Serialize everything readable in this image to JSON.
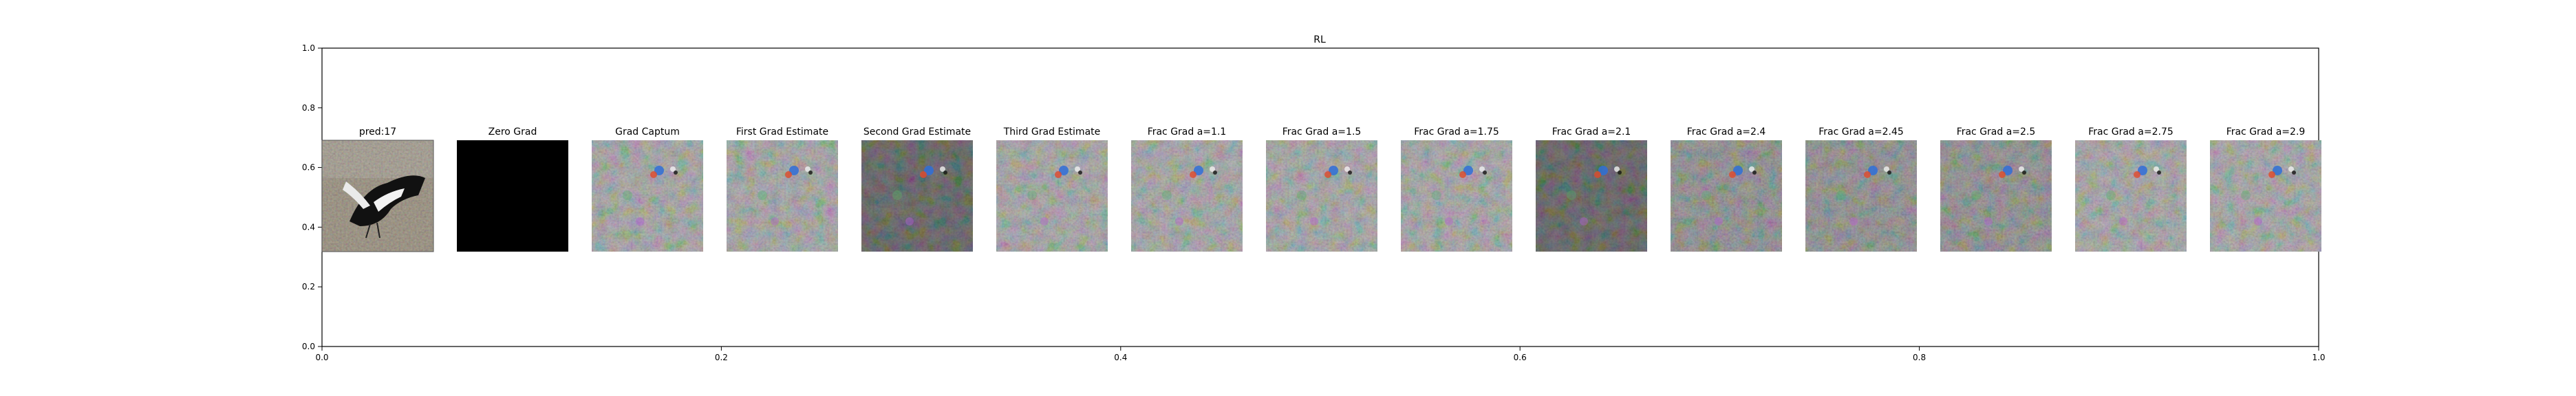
{
  "figure": {
    "title": "RL",
    "x_ticks": [
      "0.0",
      "0.2",
      "0.4",
      "0.6",
      "0.8",
      "1.0"
    ],
    "y_ticks": [
      "0.0",
      "0.2",
      "0.4",
      "0.6",
      "0.8",
      "1.0"
    ]
  },
  "panels": [
    {
      "title": "pred:17",
      "style": "photo"
    },
    {
      "title": "Zero Grad",
      "style": "black"
    },
    {
      "title": "Grad Captum",
      "style": "grad-light"
    },
    {
      "title": "First Grad Estimate",
      "style": "grad-light"
    },
    {
      "title": "Second Grad Estimate",
      "style": "grad-dark"
    },
    {
      "title": "Third Grad Estimate",
      "style": "grad-light"
    },
    {
      "title": "Frac Grad a=1.1",
      "style": "grad-light"
    },
    {
      "title": "Frac Grad a=1.5",
      "style": "grad-light"
    },
    {
      "title": "Frac Grad a=1.75",
      "style": "grad-light"
    },
    {
      "title": "Frac Grad a=2.1",
      "style": "grad-dark"
    },
    {
      "title": "Frac Grad a=2.4",
      "style": "grad-mid"
    },
    {
      "title": "Frac Grad a=2.45",
      "style": "grad-mid"
    },
    {
      "title": "Frac Grad a=2.5",
      "style": "grad-mid"
    },
    {
      "title": "Frac Grad a=2.75",
      "style": "grad-light"
    },
    {
      "title": "Frac Grad a=2.9",
      "style": "grad-light"
    }
  ]
}
